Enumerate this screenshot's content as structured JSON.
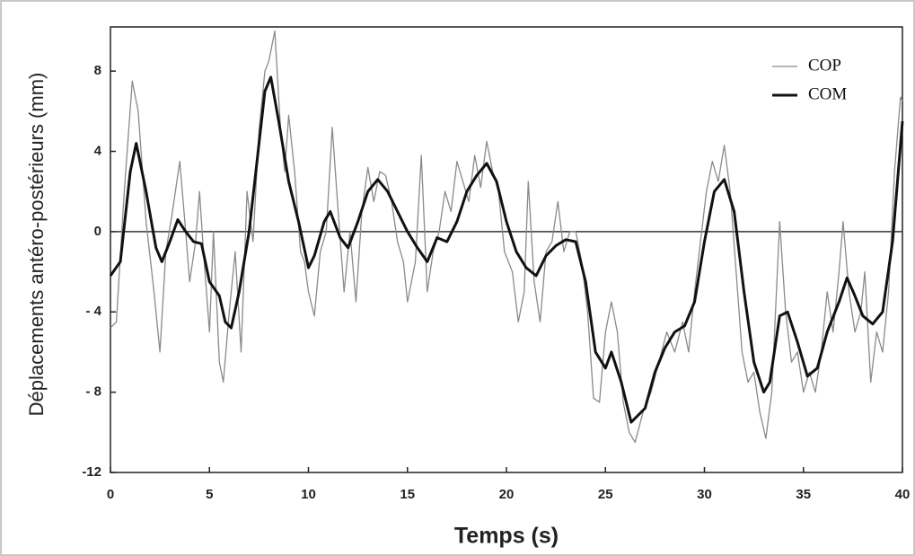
{
  "chart_data": {
    "type": "line",
    "xlabel": "Temps (s)",
    "ylabel": "Déplacements antéro-postérieurs (mm)",
    "xlim": [
      0,
      40
    ],
    "xticks": [
      0,
      5,
      10,
      15,
      20,
      25,
      30,
      35,
      40
    ],
    "ylim": [
      -12,
      10.2
    ],
    "yticks": [
      {
        "value": -12,
        "label": "-12"
      },
      {
        "value": -8,
        "label": "- 8"
      },
      {
        "value": -4,
        "label": "- 4"
      },
      0,
      4,
      8
    ],
    "legend": "upper right",
    "series": [
      {
        "name": "COP",
        "color": "#8a8a8a",
        "x": [
          0,
          0.3,
          0.7,
          1.1,
          1.4,
          1.8,
          2.2,
          2.5,
          2.8,
          3.1,
          3.5,
          3.8,
          4,
          4.3,
          4.5,
          4.7,
          5,
          5.2,
          5.5,
          5.7,
          6,
          6.3,
          6.6,
          6.9,
          7.2,
          7.5,
          7.8,
          8,
          8.3,
          8.6,
          8.8,
          9,
          9.3,
          9.6,
          9.8,
          10,
          10.3,
          10.6,
          10.9,
          11.2,
          11.5,
          11.8,
          12.1,
          12.4,
          12.7,
          13,
          13.3,
          13.6,
          13.9,
          14.2,
          14.5,
          14.8,
          15,
          15.4,
          15.7,
          16,
          16.3,
          16.6,
          16.9,
          17.2,
          17.5,
          17.8,
          18.1,
          18.4,
          18.7,
          19,
          19.3,
          19.6,
          19.9,
          20.3,
          20.6,
          20.9,
          21.1,
          21.4,
          21.7,
          22,
          22.3,
          22.6,
          22.9,
          23.2,
          23.5,
          23.8,
          24.1,
          24.4,
          24.7,
          25,
          25.3,
          25.6,
          25.9,
          26.2,
          26.5,
          26.9,
          27.3,
          27.7,
          28.1,
          28.5,
          28.9,
          29.2,
          29.5,
          29.8,
          30.1,
          30.4,
          30.7,
          31,
          31.3,
          31.6,
          31.9,
          32.2,
          32.5,
          32.8,
          33.1,
          33.4,
          33.8,
          34.1,
          34.4,
          34.7,
          35,
          35.3,
          35.6,
          35.9,
          36.2,
          36.5,
          36.8,
          37,
          37.3,
          37.6,
          37.9,
          38.1,
          38.4,
          38.7,
          39,
          39.3,
          39.6,
          39.9,
          40
        ],
        "values": [
          -4.8,
          -4.5,
          2,
          7.5,
          6,
          0.5,
          -3,
          -6,
          -1,
          0.8,
          3.5,
          0,
          -2.5,
          -0.5,
          2,
          -1,
          -5,
          0,
          -6.5,
          -7.5,
          -4,
          -1,
          -6,
          2,
          -0.5,
          5,
          8,
          8.5,
          10,
          5,
          3,
          5.8,
          3,
          -1,
          -1.5,
          -3,
          -4.2,
          -1,
          0,
          5.2,
          1,
          -3,
          0,
          -3.5,
          1,
          3.2,
          1.5,
          3,
          2.8,
          1.5,
          -0.5,
          -1.5,
          -3.5,
          -1.5,
          3.8,
          -3,
          -1,
          0,
          2,
          1,
          3.5,
          2.5,
          1.5,
          3.8,
          2.2,
          4.5,
          3,
          2,
          -1,
          -2,
          -4.5,
          -3,
          2.5,
          -2.5,
          -4.5,
          -1,
          -0.5,
          1.5,
          -1,
          0,
          0,
          -1.5,
          -4,
          -8.3,
          -8.5,
          -5,
          -3.5,
          -5,
          -8.5,
          -10,
          -10.5,
          -9,
          -8,
          -6.5,
          -5,
          -6,
          -4.5,
          -6,
          -3,
          -0.5,
          2,
          3.5,
          2.5,
          4.3,
          2,
          -2,
          -6,
          -7.5,
          -7,
          -9,
          -10.3,
          -8,
          0.5,
          -4,
          -6.5,
          -6,
          -8,
          -7,
          -8,
          -6,
          -3,
          -5,
          -2,
          0.5,
          -3,
          -5,
          -4,
          -2,
          -7.5,
          -5,
          -6,
          -3,
          3,
          6.7,
          6.5
        ]
      },
      {
        "name": "COM",
        "color": "#111111",
        "x": [
          0,
          0.5,
          1,
          1.3,
          1.8,
          2.3,
          2.6,
          3,
          3.4,
          3.8,
          4.2,
          4.6,
          5,
          5.5,
          5.8,
          6.1,
          6.5,
          7,
          7.4,
          7.8,
          8.1,
          8.5,
          9,
          9.5,
          10,
          10.3,
          10.8,
          11.1,
          11.6,
          12,
          12.5,
          13,
          13.5,
          14,
          14.5,
          15,
          15.5,
          16,
          16.5,
          17,
          17.5,
          18,
          18.5,
          19,
          19.5,
          20,
          20.5,
          21,
          21.5,
          22,
          22.5,
          23,
          23.5,
          24,
          24.5,
          25,
          25.3,
          25.8,
          26.3,
          27,
          27.5,
          28,
          28.5,
          29,
          29.5,
          30,
          30.5,
          31,
          31.5,
          32,
          32.5,
          33,
          33.3,
          33.8,
          34.2,
          34.7,
          35.2,
          35.7,
          36.2,
          36.8,
          37.2,
          37.6,
          38,
          38.5,
          39,
          39.5,
          40
        ],
        "values": [
          -2.2,
          -1.5,
          3,
          4.4,
          2,
          -0.8,
          -1.5,
          -0.5,
          0.6,
          0,
          -0.5,
          -0.6,
          -2.5,
          -3.2,
          -4.5,
          -4.8,
          -3,
          0,
          3.5,
          7,
          7.7,
          5.5,
          2.5,
          0.5,
          -1.8,
          -1.2,
          0.5,
          1,
          -0.3,
          -0.8,
          0.5,
          2,
          2.6,
          2,
          1,
          0,
          -0.8,
          -1.5,
          -0.3,
          -0.5,
          0.5,
          2,
          2.8,
          3.4,
          2.5,
          0.5,
          -1,
          -1.8,
          -2.2,
          -1.2,
          -0.7,
          -0.4,
          -0.5,
          -2.5,
          -6,
          -6.8,
          -6,
          -7.5,
          -9.5,
          -8.8,
          -7,
          -5.8,
          -5,
          -4.7,
          -3.5,
          -0.5,
          2,
          2.6,
          1,
          -3,
          -6.5,
          -8,
          -7.5,
          -4.2,
          -4,
          -5.5,
          -7.2,
          -6.8,
          -5,
          -3.5,
          -2.3,
          -3.2,
          -4.2,
          -4.6,
          -4,
          -0.5,
          5.5
        ]
      }
    ]
  }
}
